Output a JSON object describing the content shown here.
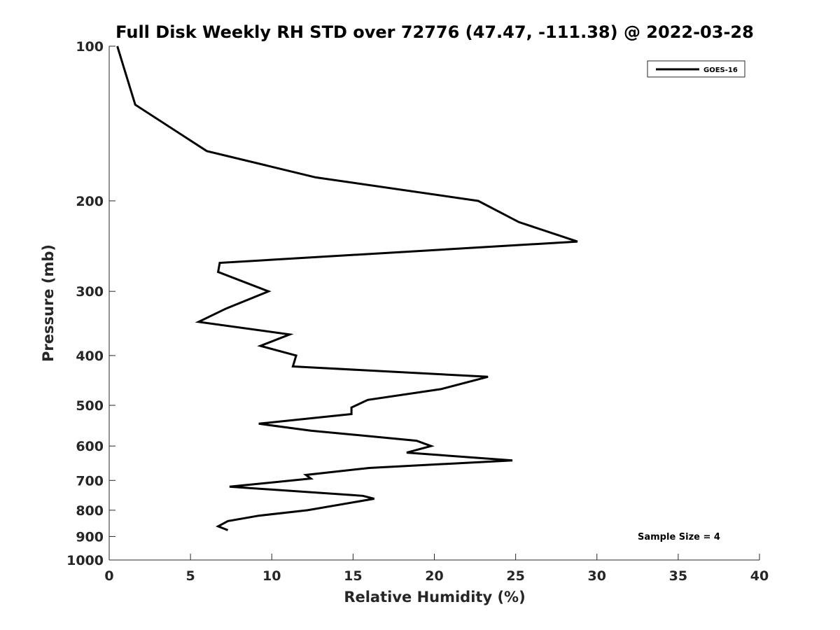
{
  "chart_data": {
    "type": "line",
    "title": "Full Disk Weekly RH STD over 72776 (47.47, -111.38) @ 2022-03-28",
    "xlabel": "Relative Humidity (%)",
    "ylabel": "Pressure (mb)",
    "xlim": [
      0,
      40
    ],
    "ylim": [
      100,
      1000
    ],
    "yscale": "log",
    "y_reversed": true,
    "xticks": [
      0,
      5,
      10,
      15,
      20,
      25,
      30,
      35,
      40
    ],
    "yticks": [
      100,
      200,
      300,
      400,
      500,
      600,
      700,
      800,
      900,
      1000
    ],
    "grid": false,
    "legend_placement": "top-right",
    "annotation": "Sample Size = 4",
    "series": [
      {
        "name": "GOES-16",
        "color": "#000000",
        "x": [
          0.5,
          0.9,
          1.6,
          6.0,
          12.7,
          22.7,
          25.2,
          28.8,
          6.8,
          6.7,
          9.8,
          7.2,
          5.5,
          11.1,
          9.3,
          11.5,
          11.3,
          23.3,
          20.4,
          15.9,
          14.9,
          14.9,
          9.2,
          12.4,
          18.9,
          19.8,
          18.3,
          24.8,
          16.0,
          12.1,
          12.4,
          7.4,
          15.6,
          16.3,
          12.2,
          9.2,
          7.3,
          6.7,
          7.3
        ],
        "y": [
          100,
          110,
          130,
          160,
          180,
          200,
          220,
          240,
          264,
          275,
          300,
          324,
          344,
          364,
          383,
          400,
          420,
          440,
          465,
          488,
          505,
          520,
          543,
          560,
          586,
          600,
          618,
          640,
          662,
          683,
          694,
          720,
          750,
          760,
          800,
          820,
          840,
          860,
          875
        ]
      }
    ]
  }
}
